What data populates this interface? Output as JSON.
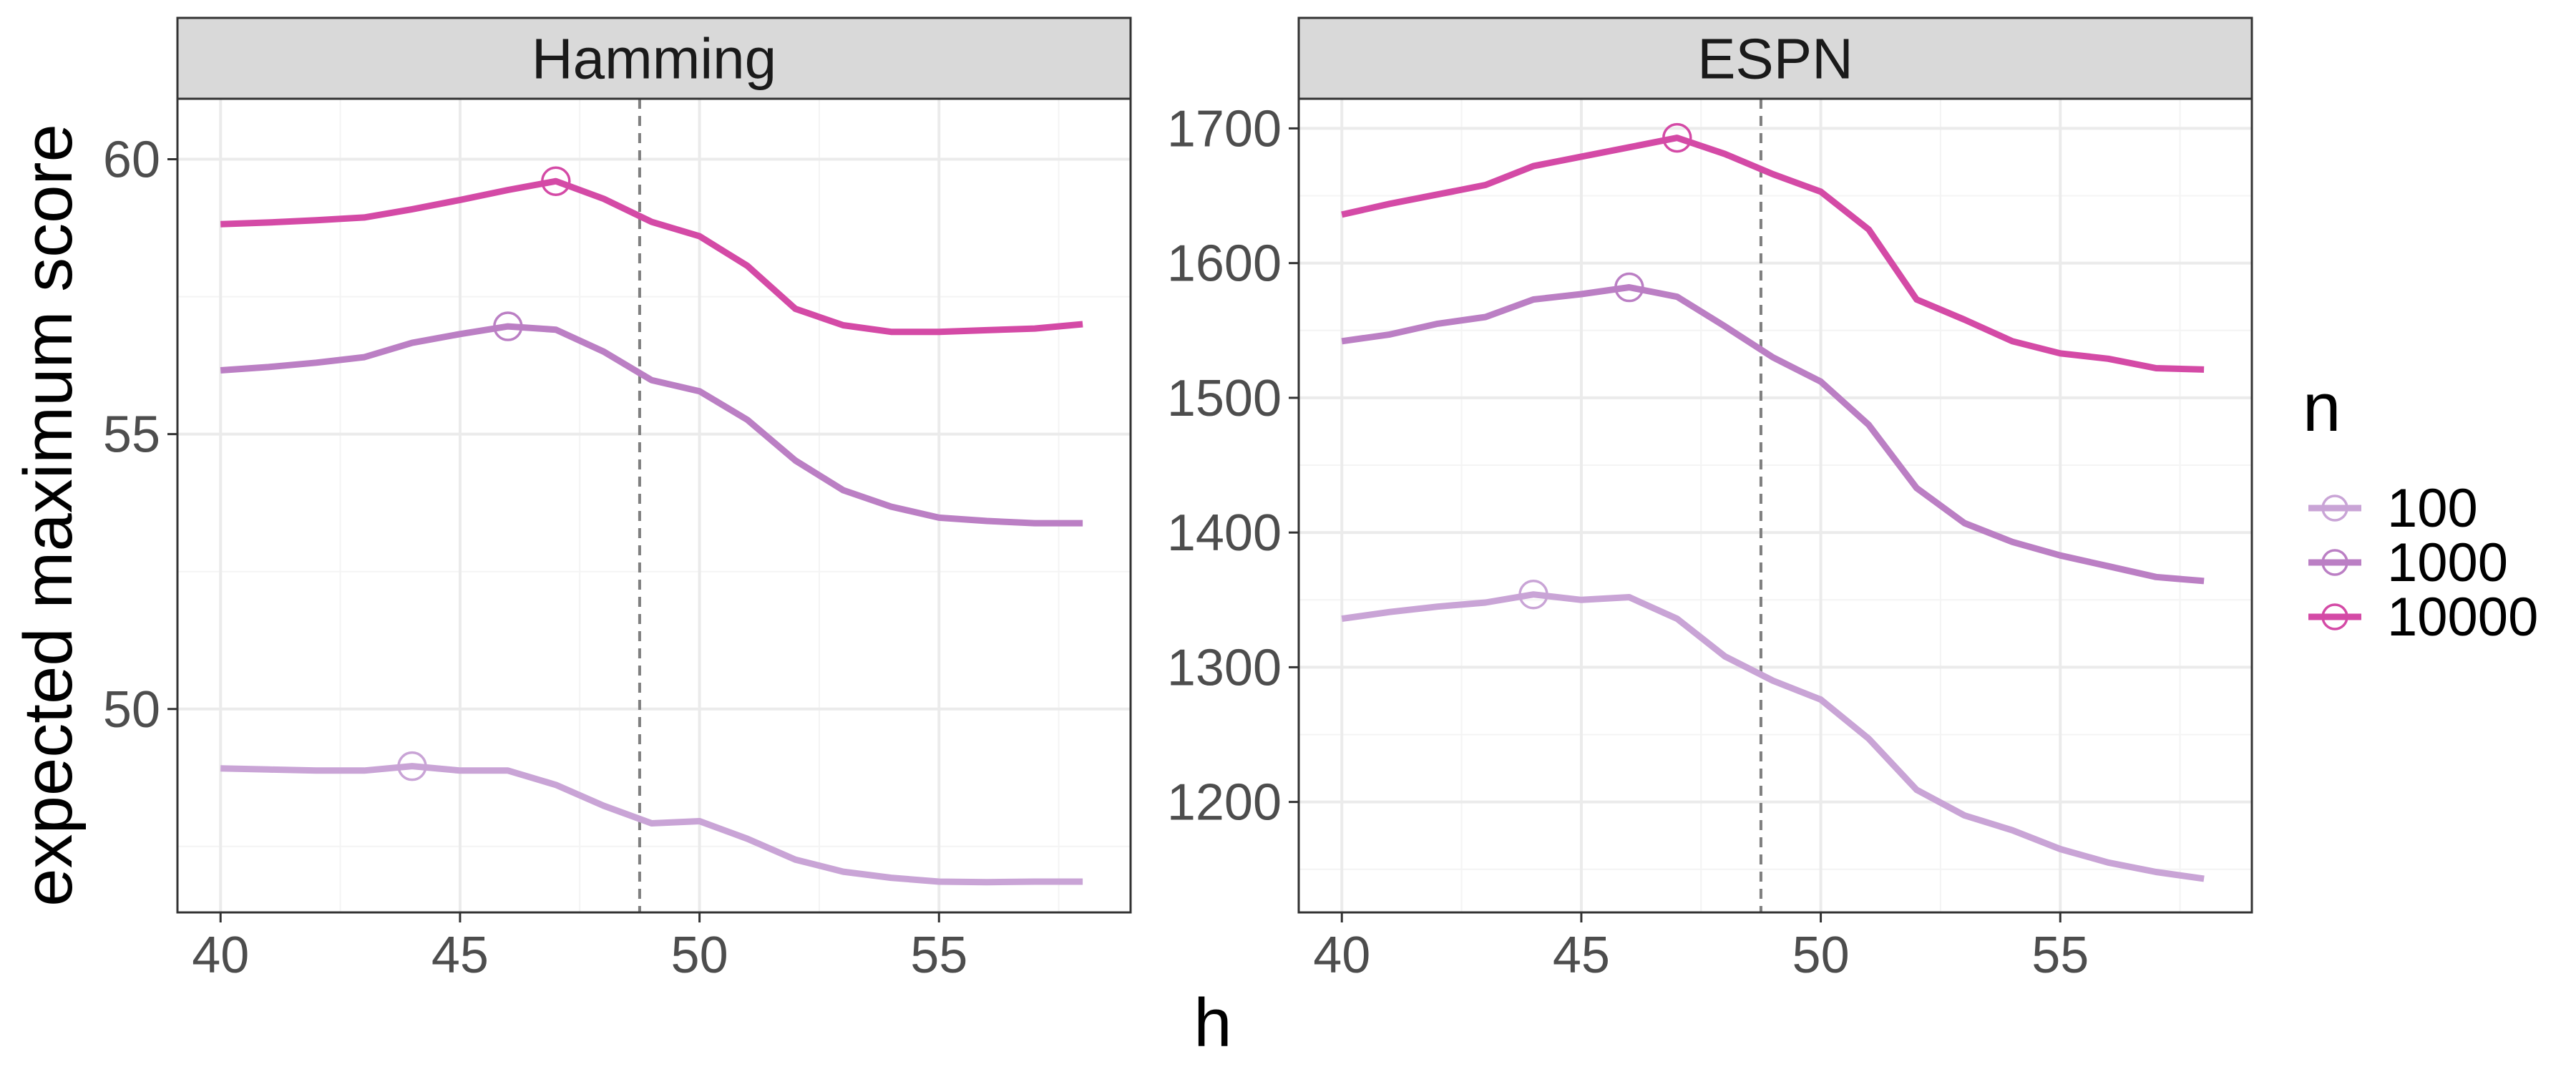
{
  "chart_data": [
    {
      "type": "line",
      "panel": "Hamming",
      "x": [
        40,
        41,
        42,
        43,
        44,
        45,
        46,
        47,
        48,
        49,
        50,
        51,
        52,
        53,
        54,
        55,
        56,
        57,
        58
      ],
      "xlim": [
        39.1,
        59
      ],
      "ylim": [
        46.3,
        61.1
      ],
      "xticks": [
        40,
        45,
        50,
        55
      ],
      "yticks": [
        50,
        55,
        60
      ],
      "vline": 48.75,
      "series": [
        {
          "name": "100",
          "values": [
            48.92,
            48.9,
            48.88,
            48.88,
            48.96,
            48.88,
            48.88,
            48.62,
            48.24,
            47.92,
            47.96,
            47.64,
            47.26,
            47.04,
            46.93,
            46.86,
            46.85,
            46.86,
            46.86
          ],
          "max_at": 44
        },
        {
          "name": "1000",
          "values": [
            56.16,
            56.22,
            56.3,
            56.4,
            56.66,
            56.82,
            56.96,
            56.9,
            56.5,
            55.98,
            55.78,
            55.26,
            54.52,
            53.98,
            53.68,
            53.48,
            53.42,
            53.38,
            53.38
          ],
          "max_at": 46
        },
        {
          "name": "10000",
          "values": [
            58.82,
            58.85,
            58.89,
            58.94,
            59.09,
            59.26,
            59.44,
            59.6,
            59.28,
            58.86,
            58.6,
            58.06,
            57.28,
            56.98,
            56.86,
            56.86,
            56.89,
            56.92,
            57.0
          ],
          "max_at": 47
        }
      ]
    },
    {
      "type": "line",
      "panel": "ESPN",
      "x": [
        40,
        41,
        42,
        43,
        44,
        45,
        46,
        47,
        48,
        49,
        50,
        51,
        52,
        53,
        54,
        55,
        56,
        57,
        58
      ],
      "xlim": [
        39.1,
        59
      ],
      "ylim": [
        1118,
        1722
      ],
      "xticks": [
        40,
        45,
        50,
        55
      ],
      "yticks": [
        1200,
        1300,
        1400,
        1500,
        1600,
        1700
      ],
      "vline": 48.75,
      "series": [
        {
          "name": "100",
          "values": [
            1336,
            1341,
            1345,
            1348,
            1354,
            1350,
            1352,
            1336,
            1308,
            1290,
            1276,
            1247,
            1209,
            1190,
            1179,
            1165,
            1155,
            1148,
            1143
          ],
          "max_at": 44
        },
        {
          "name": "1000",
          "values": [
            1542,
            1547,
            1555,
            1560,
            1573,
            1577,
            1582,
            1575,
            1553,
            1530,
            1512,
            1480,
            1433,
            1407,
            1393,
            1383,
            1375,
            1367,
            1364
          ],
          "max_at": 46
        },
        {
          "name": "10000",
          "values": [
            1636,
            1644,
            1651,
            1658,
            1672,
            1679,
            1686,
            1693,
            1681,
            1666,
            1653,
            1625,
            1573,
            1558,
            1542,
            1533,
            1529,
            1522,
            1521
          ],
          "max_at": 47
        }
      ]
    }
  ],
  "xlabel": "h",
  "ylabel": "expected maximum score",
  "legend": {
    "title": "n",
    "placement": "right",
    "entries": [
      "100",
      "1000",
      "10000"
    ]
  },
  "colors": {
    "100": "#c9a4d6",
    "1000": "#bb7fc4",
    "10000": "#d44aa6",
    "strip_fill": "#d9d9d9",
    "grid_major": "#ebebeb",
    "grid_minor": "#f4f4f4",
    "vline": "#7f7f7f",
    "panel_border": "#333333"
  }
}
